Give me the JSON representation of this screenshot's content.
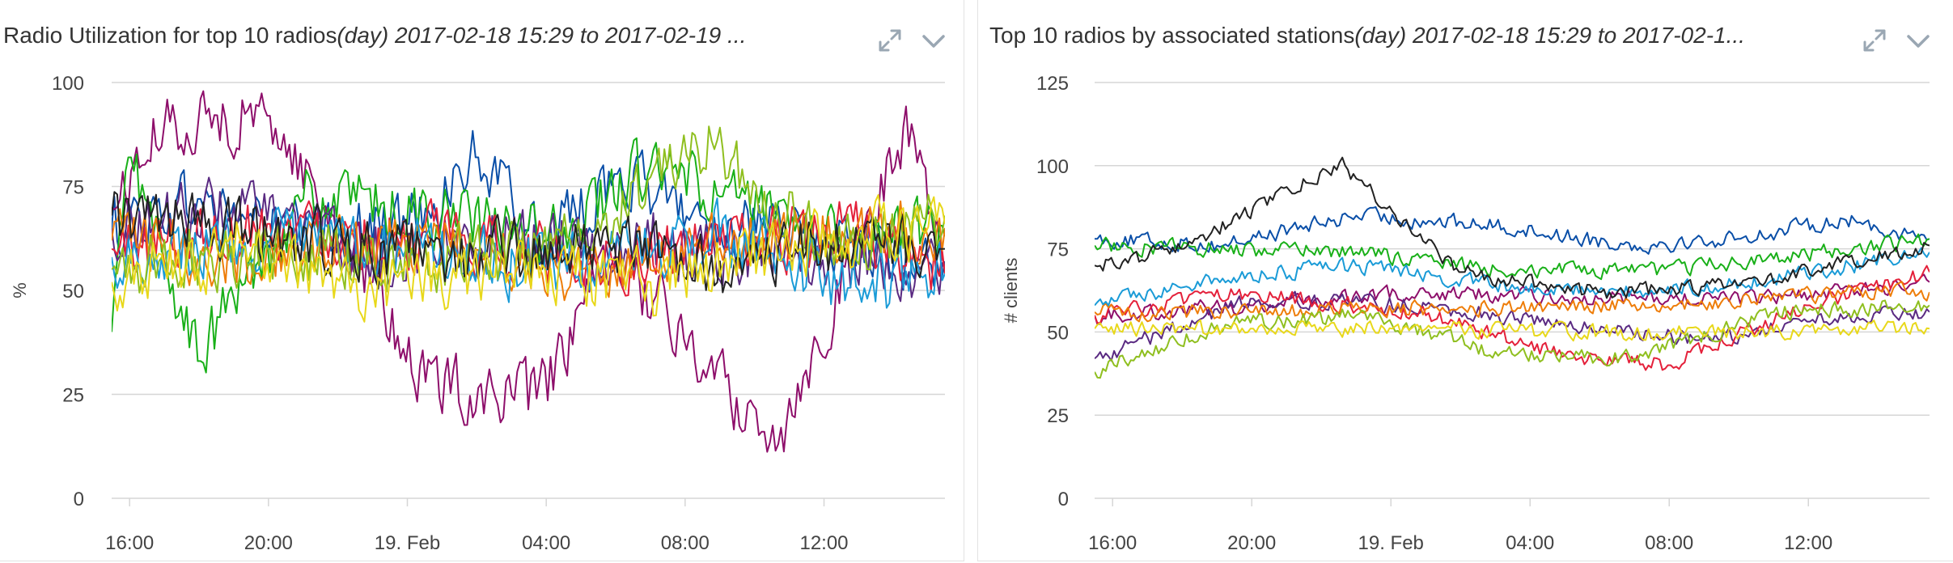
{
  "colors": {
    "series": [
      "#0a4fa8",
      "#8e0f6b",
      "#19b019",
      "#5a2a82",
      "#e4203a",
      "#ee7d09",
      "#1a9bd7",
      "#8fbf1f",
      "#222222",
      "#e8d81a"
    ],
    "grid": "#d6d6d6",
    "axis_text": "#444444",
    "icon": "#9aa7b3"
  },
  "panels": [
    {
      "title_main": "Radio Utilization for top 10 radios",
      "title_period": "(day) 2017-02-18 15:29 to 2017-02-19 ...",
      "expand_icon": "expand-icon",
      "menu_icon": "chevron-down-icon"
    },
    {
      "title_main": "Top 10 radios by associated stations",
      "title_period": "(day) 2017-02-18 15:29 to 2017-02-1...",
      "expand_icon": "expand-icon",
      "menu_icon": "chevron-down-icon"
    }
  ],
  "chart_data": [
    {
      "type": "line",
      "title": "Radio Utilization for top 10 radios(day) 2017-02-18 15:29 to 2017-02-19 ...",
      "xlabel": "",
      "ylabel": "%",
      "x_range": [
        "2017-02-18 15:29",
        "2017-02-19 15:29"
      ],
      "x_ticks": [
        {
          "time": "2017-02-18 16:00",
          "label": "16:00"
        },
        {
          "time": "2017-02-18 20:00",
          "label": "20:00"
        },
        {
          "time": "2017-02-19 00:00",
          "label": "19. Feb"
        },
        {
          "time": "2017-02-19 04:00",
          "label": "04:00"
        },
        {
          "time": "2017-02-19 08:00",
          "label": "08:00"
        },
        {
          "time": "2017-02-19 12:00",
          "label": "12:00"
        }
      ],
      "ylim": [
        0,
        100
      ],
      "y_ticks": [
        0,
        25,
        50,
        75,
        100
      ],
      "grid": true,
      "legend": "none",
      "series": [
        {
          "x": [
            "2017-02-18 15:29",
            "2017-02-18 18:00",
            "2017-02-18 21:00",
            "2017-02-19 00:00",
            "2017-02-19 02:00",
            "2017-02-19 04:00",
            "2017-02-19 06:00",
            "2017-02-19 09:00",
            "2017-02-19 12:00",
            "2017-02-19 15:29"
          ],
          "values": [
            65,
            72,
            63,
            66,
            82,
            60,
            78,
            65,
            62,
            57
          ]
        },
        {
          "x": [
            "2017-02-18 15:29",
            "2017-02-18 17:00",
            "2017-02-18 20:00",
            "2017-02-18 23:00",
            "2017-02-19 00:30",
            "2017-02-19 03:45",
            "2017-02-19 06:00",
            "2017-02-19 10:15",
            "2017-02-19 10:45",
            "2017-02-19 14:30",
            "2017-02-19 15:29"
          ],
          "values": [
            70,
            90,
            92,
            52,
            28,
            24,
            58,
            16,
            17,
            90,
            55
          ]
        },
        {
          "x": [
            "2017-02-18 15:29",
            "2017-02-18 16:00",
            "2017-02-18 18:00",
            "2017-02-18 19:00",
            "2017-02-18 21:00",
            "2017-02-19 01:00",
            "2017-02-19 04:00",
            "2017-02-19 07:00",
            "2017-02-19 11:00",
            "2017-02-19 15:29"
          ],
          "values": [
            40,
            82,
            33,
            48,
            72,
            68,
            62,
            80,
            65,
            63
          ]
        },
        {
          "x": [
            "2017-02-18 15:29",
            "2017-02-18 19:00",
            "2017-02-18 23:00",
            "2017-02-19 03:00",
            "2017-02-19 07:00",
            "2017-02-19 11:00",
            "2017-02-19 15:29"
          ],
          "values": [
            65,
            70,
            58,
            64,
            60,
            58,
            55
          ]
        },
        {
          "x": [
            "2017-02-18 15:29",
            "2017-02-18 20:00",
            "2017-02-19 01:00",
            "2017-02-19 05:00",
            "2017-02-19 09:00",
            "2017-02-19 13:00",
            "2017-02-19 15:29"
          ],
          "values": [
            60,
            66,
            62,
            57,
            61,
            64,
            54
          ]
        },
        {
          "x": [
            "2017-02-18 15:29",
            "2017-02-18 19:00",
            "2017-02-19 00:00",
            "2017-02-19 05:00",
            "2017-02-19 10:00",
            "2017-02-19 15:29"
          ],
          "values": [
            62,
            58,
            63,
            55,
            62,
            65
          ]
        },
        {
          "x": [
            "2017-02-18 15:29",
            "2017-02-18 19:00",
            "2017-02-19 00:00",
            "2017-02-19 04:00",
            "2017-02-19 09:00",
            "2017-02-19 13:00",
            "2017-02-19 15:29"
          ],
          "values": [
            58,
            62,
            60,
            55,
            63,
            50,
            54
          ]
        },
        {
          "x": [
            "2017-02-18 15:29",
            "2017-02-18 20:00",
            "2017-02-19 01:00",
            "2017-02-19 05:00",
            "2017-02-19 08:45",
            "2017-02-19 12:00",
            "2017-02-19 15:29"
          ],
          "values": [
            55,
            60,
            57,
            62,
            86,
            60,
            68
          ]
        },
        {
          "x": [
            "2017-02-18 15:29",
            "2017-02-18 20:00",
            "2017-02-19 01:00",
            "2017-02-19 05:00",
            "2017-02-19 09:00",
            "2017-02-19 13:00",
            "2017-02-19 15:29"
          ],
          "values": [
            68,
            63,
            58,
            60,
            57,
            62,
            60
          ]
        },
        {
          "x": [
            "2017-02-18 15:29",
            "2017-02-18 19:00",
            "2017-02-18 23:00",
            "2017-02-19 03:00",
            "2017-02-19 07:00",
            "2017-02-19 11:00",
            "2017-02-19 15:29"
          ],
          "values": [
            52,
            58,
            50,
            54,
            52,
            60,
            66
          ]
        }
      ]
    },
    {
      "type": "line",
      "title": "Top 10 radios by associated stations(day) 2017-02-18 15:29 to 2017-02-1...",
      "xlabel": "",
      "ylabel": "# clients",
      "x_range": [
        "2017-02-18 15:29",
        "2017-02-19 15:29"
      ],
      "x_ticks": [
        {
          "time": "2017-02-18 16:00",
          "label": "16:00"
        },
        {
          "time": "2017-02-18 20:00",
          "label": "20:00"
        },
        {
          "time": "2017-02-19 00:00",
          "label": "19. Feb"
        },
        {
          "time": "2017-02-19 04:00",
          "label": "04:00"
        },
        {
          "time": "2017-02-19 08:00",
          "label": "08:00"
        },
        {
          "time": "2017-02-19 12:00",
          "label": "12:00"
        }
      ],
      "ylim": [
        0,
        125
      ],
      "y_ticks": [
        0,
        25,
        50,
        75,
        100,
        125
      ],
      "grid": true,
      "legend": "none",
      "series": [
        {
          "x": [
            "2017-02-18 15:29",
            "2017-02-18 19:00",
            "2017-02-18 23:00",
            "2017-02-19 03:00",
            "2017-02-19 07:00",
            "2017-02-19 10:00",
            "2017-02-19 13:00",
            "2017-02-19 15:29"
          ],
          "values": [
            78,
            76,
            85,
            82,
            76,
            78,
            84,
            78
          ]
        },
        {
          "x": [
            "2017-02-18 15:29",
            "2017-02-18 20:00",
            "2017-02-19 01:00",
            "2017-02-19 06:00",
            "2017-02-19 11:00",
            "2017-02-19 15:29"
          ],
          "values": [
            55,
            58,
            62,
            60,
            60,
            65
          ]
        },
        {
          "x": [
            "2017-02-18 15:29",
            "2017-02-18 19:00",
            "2017-02-18 23:00",
            "2017-02-19 03:00",
            "2017-02-19 07:00",
            "2017-02-19 11:00",
            "2017-02-19 15:29"
          ],
          "values": [
            76,
            75,
            74,
            69,
            68,
            72,
            78
          ]
        },
        {
          "x": [
            "2017-02-18 15:29",
            "2017-02-18 20:00",
            "2017-02-19 01:00",
            "2017-02-19 05:00",
            "2017-02-19 09:00",
            "2017-02-19 13:00",
            "2017-02-19 15:29"
          ],
          "values": [
            42,
            60,
            58,
            52,
            48,
            54,
            56
          ]
        },
        {
          "x": [
            "2017-02-18 15:29",
            "2017-02-18 20:00",
            "2017-02-19 01:00",
            "2017-02-19 05:00",
            "2017-02-19 08:00",
            "2017-02-19 12:00",
            "2017-02-19 15:29"
          ],
          "values": [
            55,
            62,
            55,
            43,
            40,
            58,
            68
          ]
        },
        {
          "x": [
            "2017-02-18 15:29",
            "2017-02-18 20:00",
            "2017-02-19 01:00",
            "2017-02-19 05:00",
            "2017-02-19 09:00",
            "2017-02-19 13:00",
            "2017-02-19 15:29"
          ],
          "values": [
            56,
            56,
            57,
            58,
            58,
            62,
            62
          ]
        },
        {
          "x": [
            "2017-02-18 15:29",
            "2017-02-18 19:00",
            "2017-02-18 23:00",
            "2017-02-19 03:00",
            "2017-02-19 07:00",
            "2017-02-19 11:00",
            "2017-02-19 15:29"
          ],
          "values": [
            58,
            66,
            70,
            64,
            62,
            66,
            74
          ]
        },
        {
          "x": [
            "2017-02-18 15:29",
            "2017-02-18 19:00",
            "2017-02-18 23:00",
            "2017-02-19 03:00",
            "2017-02-19 07:00",
            "2017-02-19 11:00",
            "2017-02-19 15:29"
          ],
          "values": [
            38,
            52,
            55,
            44,
            42,
            56,
            58
          ]
        },
        {
          "x": [
            "2017-02-18 15:29",
            "2017-02-18 18:00",
            "2017-02-18 22:30",
            "2017-02-19 02:00",
            "2017-02-19 06:00",
            "2017-02-19 10:00",
            "2017-02-19 15:29"
          ],
          "values": [
            70,
            75,
            101,
            68,
            62,
            64,
            76
          ]
        },
        {
          "x": [
            "2017-02-18 15:29",
            "2017-02-18 20:00",
            "2017-02-19 01:00",
            "2017-02-19 06:00",
            "2017-02-19 11:00",
            "2017-02-19 15:29"
          ],
          "values": [
            51,
            51,
            51,
            50,
            50,
            51
          ]
        }
      ]
    }
  ]
}
